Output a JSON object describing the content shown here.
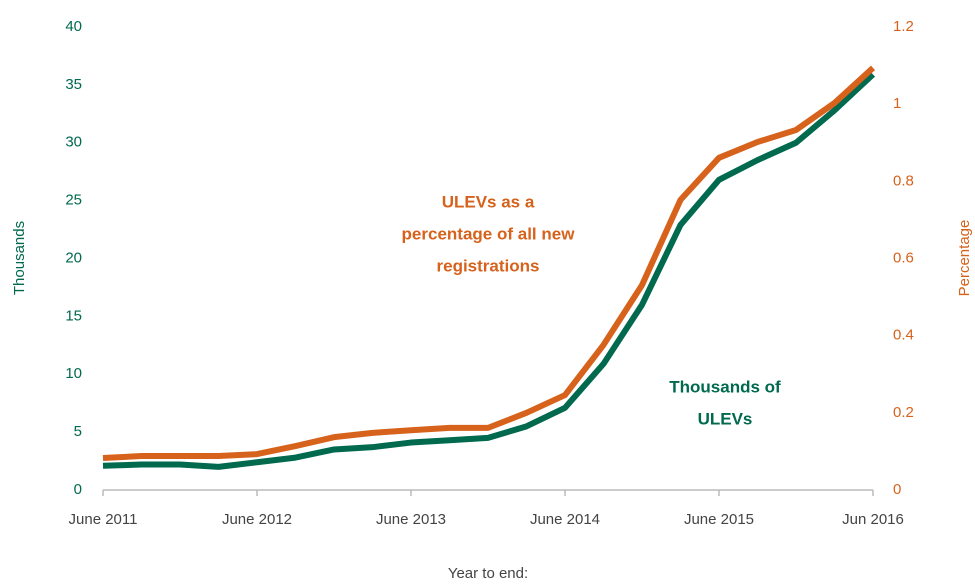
{
  "chart_data": {
    "type": "line",
    "x_label": "Year to end:",
    "y_label": "Thousands",
    "y2_label": "Percentage",
    "categories": [
      "June 2011",
      null,
      null,
      null,
      "June 2012",
      null,
      null,
      null,
      "June 2013",
      null,
      null,
      null,
      "June 2014",
      null,
      null,
      null,
      "June 2015",
      null,
      null,
      null,
      "Jun 2016"
    ],
    "series": [
      {
        "name": "Thousands of ULEVs",
        "color": "#00694e",
        "axis": "y",
        "values": [
          2.1,
          2.2,
          2.2,
          2.0,
          2.4,
          2.8,
          3.5,
          3.7,
          4.1,
          4.3,
          4.5,
          5.5,
          7.1,
          10.9,
          16.0,
          22.9,
          26.8,
          28.5,
          30.0,
          32.8,
          35.9
        ]
      },
      {
        "name": "ULEVs as a percentage of all new registrations",
        "color": "#d6621c",
        "axis": "y2",
        "values": [
          0.083,
          0.088,
          0.088,
          0.088,
          0.093,
          0.114,
          0.137,
          0.148,
          0.155,
          0.161,
          0.161,
          0.2,
          0.246,
          0.376,
          0.531,
          0.752,
          0.861,
          0.902,
          0.933,
          1.003,
          1.094
        ]
      }
    ],
    "annotations": [
      {
        "lines": [
          "ULEVs as a",
          "percentage of all new",
          "registrations"
        ],
        "color": "#d6621c"
      },
      {
        "lines": [
          "Thousands of",
          "ULEVs"
        ],
        "color": "#00694e"
      }
    ],
    "ylim": [
      0,
      40
    ],
    "yticks": [
      0,
      5,
      10,
      15,
      20,
      25,
      30,
      35,
      40
    ],
    "y2lim": [
      0,
      1.2
    ],
    "y2ticks": [
      0,
      0.2,
      0.4,
      0.6,
      0.8,
      1,
      1.2
    ],
    "grid": false
  }
}
